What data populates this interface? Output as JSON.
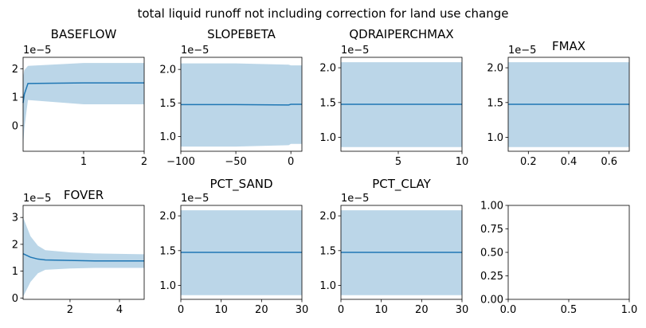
{
  "figure": {
    "suptitle": "total liquid runoff not including correction for land use change",
    "colors": {
      "line": "#1f77b4",
      "band": "#1f77b4"
    }
  },
  "chart_data": [
    {
      "type": "line",
      "title": "BASEFLOW",
      "xlabel": "",
      "ylabel": "",
      "offset_text": "1e−5",
      "xlim": [
        0.0,
        2.0
      ],
      "ylim": [
        -0.9,
        2.4
      ],
      "xticks": [
        1,
        2
      ],
      "xtick_labels": [
        "1",
        "2"
      ],
      "yticks": [
        0,
        1,
        2
      ],
      "ytick_labels": [
        "0",
        "1",
        "2"
      ],
      "x": [
        0.0,
        0.02,
        0.08,
        1.0,
        2.0
      ],
      "mean": [
        0.8,
        1.1,
        1.48,
        1.5,
        1.5
      ],
      "lower": [
        -0.7,
        -0.1,
        0.9,
        0.75,
        0.75
      ],
      "upper": [
        1.7,
        1.95,
        2.1,
        2.2,
        2.2
      ]
    },
    {
      "type": "line",
      "title": "SLOPEBETA",
      "xlabel": "",
      "ylabel": "",
      "offset_text": "1e−5",
      "xlim": [
        -100,
        10
      ],
      "ylim": [
        0.78,
        2.18
      ],
      "xticks": [
        -100,
        -50,
        0
      ],
      "xtick_labels": [
        "−100",
        "−50",
        "0"
      ],
      "yticks": [
        1.0,
        1.5,
        2.0
      ],
      "ytick_labels": [
        "1.0",
        "1.5",
        "2.0"
      ],
      "x": [
        -100,
        -50,
        -2,
        0,
        10
      ],
      "mean": [
        1.475,
        1.475,
        1.47,
        1.48,
        1.48
      ],
      "lower": [
        0.85,
        0.85,
        0.87,
        0.89,
        0.89
      ],
      "upper": [
        2.09,
        2.09,
        2.07,
        2.06,
        2.06
      ]
    },
    {
      "type": "line",
      "title": "QDRAIPERCHMAX",
      "xlabel": "",
      "ylabel": "",
      "offset_text": "1e−5",
      "xlim": [
        0.5,
        10
      ],
      "ylim": [
        0.8,
        2.15
      ],
      "xticks": [
        5,
        10
      ],
      "xtick_labels": [
        "5",
        "10"
      ],
      "yticks": [
        1.0,
        1.5,
        2.0
      ],
      "ytick_labels": [
        "1.0",
        "1.5",
        "2.0"
      ],
      "x": [
        0.5,
        10
      ],
      "mean": [
        1.475,
        1.475
      ],
      "lower": [
        0.86,
        0.86
      ],
      "upper": [
        2.08,
        2.08
      ]
    },
    {
      "type": "line",
      "title": "FMAX",
      "xlabel": "",
      "ylabel": "",
      "offset_text": "1e−5",
      "xlim": [
        0.1,
        0.7
      ],
      "ylim": [
        0.8,
        2.15
      ],
      "xticks": [
        0.2,
        0.4,
        0.6
      ],
      "xtick_labels": [
        "0.2",
        "0.4",
        "0.6"
      ],
      "yticks": [
        1.0,
        1.5,
        2.0
      ],
      "ytick_labels": [
        "1.0",
        "1.5",
        "2.0"
      ],
      "x": [
        0.1,
        0.7
      ],
      "mean": [
        1.475,
        1.475
      ],
      "lower": [
        0.86,
        0.86
      ],
      "upper": [
        2.08,
        2.08
      ]
    },
    {
      "type": "line",
      "title": "FOVER",
      "xlabel": "",
      "ylabel": "",
      "offset_text": "1e−5",
      "xlim": [
        0.1,
        5
      ],
      "ylim": [
        -0.05,
        3.45
      ],
      "xticks": [
        2,
        4
      ],
      "xtick_labels": [
        "2",
        "4"
      ],
      "yticks": [
        0,
        1,
        2,
        3
      ],
      "ytick_labels": [
        "0",
        "1",
        "2",
        "3"
      ],
      "x": [
        0.1,
        0.4,
        0.7,
        1.0,
        2.0,
        3.0,
        5.0
      ],
      "mean": [
        1.65,
        1.52,
        1.45,
        1.42,
        1.4,
        1.38,
        1.38
      ],
      "lower": [
        0.05,
        0.6,
        0.92,
        1.05,
        1.1,
        1.12,
        1.12
      ],
      "upper": [
        3.0,
        2.3,
        1.95,
        1.78,
        1.7,
        1.66,
        1.63
      ]
    },
    {
      "type": "line",
      "title": "PCT_SAND",
      "xlabel": "",
      "ylabel": "",
      "offset_text": "1e−5",
      "xlim": [
        0,
        30
      ],
      "ylim": [
        0.8,
        2.15
      ],
      "xticks": [
        0,
        10,
        20,
        30
      ],
      "xtick_labels": [
        "0",
        "10",
        "20",
        "30"
      ],
      "yticks": [
        1.0,
        1.5,
        2.0
      ],
      "ytick_labels": [
        "1.0",
        "1.5",
        "2.0"
      ],
      "x": [
        0,
        30
      ],
      "mean": [
        1.475,
        1.475
      ],
      "lower": [
        0.86,
        0.86
      ],
      "upper": [
        2.08,
        2.08
      ]
    },
    {
      "type": "line",
      "title": "PCT_CLAY",
      "xlabel": "",
      "ylabel": "",
      "offset_text": "1e−5",
      "xlim": [
        0,
        30
      ],
      "ylim": [
        0.8,
        2.15
      ],
      "xticks": [
        0,
        10,
        20,
        30
      ],
      "xtick_labels": [
        "0",
        "10",
        "20",
        "30"
      ],
      "yticks": [
        1.0,
        1.5,
        2.0
      ],
      "ytick_labels": [
        "1.0",
        "1.5",
        "2.0"
      ],
      "x": [
        0,
        30
      ],
      "mean": [
        1.475,
        1.475
      ],
      "lower": [
        0.86,
        0.86
      ],
      "upper": [
        2.08,
        2.08
      ]
    },
    {
      "type": "line",
      "title": "",
      "xlabel": "",
      "ylabel": "",
      "offset_text": "",
      "empty": true,
      "xlim": [
        0,
        1
      ],
      "ylim": [
        0,
        1
      ],
      "xticks": [
        0,
        0.5,
        1
      ],
      "xtick_labels": [
        "0.0",
        "0.5",
        "1.0"
      ],
      "yticks": [
        0,
        0.25,
        0.5,
        0.75,
        1
      ],
      "ytick_labels": [
        "0.00",
        "0.25",
        "0.50",
        "0.75",
        "1.00"
      ],
      "x": [],
      "mean": [],
      "lower": [],
      "upper": []
    }
  ]
}
